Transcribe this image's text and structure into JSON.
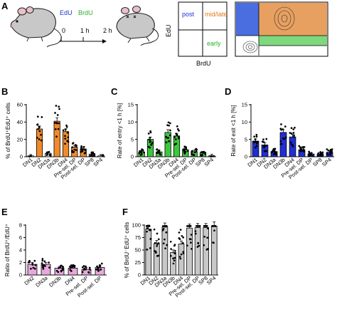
{
  "panel_labels": [
    "A",
    "B",
    "C",
    "D",
    "E",
    "F"
  ],
  "schematic": {
    "edu_label": "EdU",
    "brdu_label": "BrdU",
    "time_0": "0",
    "time_1h": "1 h",
    "time_2h": "2 h"
  },
  "quadrant": {
    "y_axis": "EdU",
    "x_axis": "BrdU",
    "post": "post",
    "midlate": "mid/late",
    "early": "early",
    "colors": {
      "post": "#4a6ee0",
      "midlate": "#e8a060",
      "early": "#7ed87e"
    }
  },
  "colors": {
    "orange": "#f08a2a",
    "green": "#3cc83c",
    "blue": "#1f2fd6",
    "pink": "#e8a8dc",
    "gray": "#c8c8c8",
    "white": "#ffffff"
  },
  "chart_data": [
    {
      "panel": "B",
      "type": "bar",
      "ylabel": "% of BrdU⁺EdU⁺ cells",
      "ylim": [
        0,
        60
      ],
      "yticks": [
        0,
        20,
        40,
        60
      ],
      "categories": [
        "DN1",
        "DN2",
        "DN3a",
        "DN3b",
        "DN4",
        "Pre-sel. DP",
        "Post-sel. DP",
        "SP8",
        "SP4"
      ],
      "values": [
        1,
        32,
        4,
        41,
        29,
        11,
        9,
        3,
        1
      ],
      "bar_colors": [
        "white",
        "orange",
        "white",
        "orange",
        "orange",
        "orange",
        "orange",
        "white",
        "white"
      ]
    },
    {
      "panel": "C",
      "type": "bar",
      "ylabel": "Rate of entry <1 h [%]",
      "ylim": [
        0,
        15
      ],
      "yticks": [
        0,
        5,
        10,
        15
      ],
      "categories": [
        "DN1",
        "DN2",
        "DN3a",
        "DN3b",
        "DN4",
        "Pre-sel. DP",
        "Post-sel. DP",
        "SP8",
        "SP4"
      ],
      "values": [
        1.3,
        5.0,
        1.4,
        7.0,
        6.0,
        2.0,
        1.4,
        1.1,
        0.3
      ],
      "bar_colors": [
        "green",
        "green",
        "green",
        "green",
        "green",
        "green",
        "green",
        "green",
        "green"
      ]
    },
    {
      "panel": "D",
      "type": "bar",
      "ylabel": "Rate of exit <1 h [%]",
      "ylim": [
        0,
        15
      ],
      "yticks": [
        0,
        5,
        10,
        15
      ],
      "categories": [
        "DN1",
        "DN2",
        "DN3a",
        "DN3b",
        "DN4",
        "Pre-sel. DP",
        "Post-sel. DP",
        "SP8",
        "SP4"
      ],
      "values": [
        4.5,
        3.4,
        1.5,
        7.0,
        5.7,
        2.0,
        0.8,
        0.8,
        1.3
      ],
      "bar_colors": [
        "blue",
        "blue",
        "blue",
        "blue",
        "blue",
        "blue",
        "blue",
        "blue",
        "blue"
      ]
    },
    {
      "panel": "E",
      "type": "bar",
      "ylabel": "Ratio of BrdU⁺/EdU⁺",
      "ylim": [
        0,
        8
      ],
      "yticks": [
        0,
        2,
        4,
        6,
        8
      ],
      "categories": [
        "DN2",
        "DN3a",
        "DN3b",
        "DN4",
        "Pre-sel. DP",
        "Post-sel. DP"
      ],
      "values": [
        1.7,
        1.7,
        1.1,
        1.1,
        0.9,
        1.2
      ],
      "bar_colors": [
        "pink",
        "pink",
        "pink",
        "pink",
        "pink",
        "pink"
      ]
    },
    {
      "panel": "F",
      "type": "bar",
      "ylabel": "% of BrdU⁻EdU⁺ cells",
      "ylim": [
        0,
        100
      ],
      "yticks": [
        0,
        25,
        50,
        75,
        100
      ],
      "categories": [
        "DN1",
        "DN2",
        "DN3a",
        "DN3b",
        "DN4",
        "Pre-sel. DP",
        "Post-sel. DP",
        "SP8",
        "SP4"
      ],
      "values": [
        92,
        63,
        96,
        45,
        62,
        94,
        95,
        95,
        98
      ],
      "bar_colors": [
        "gray",
        "gray",
        "gray",
        "gray",
        "gray",
        "gray",
        "gray",
        "gray",
        "gray"
      ]
    }
  ]
}
